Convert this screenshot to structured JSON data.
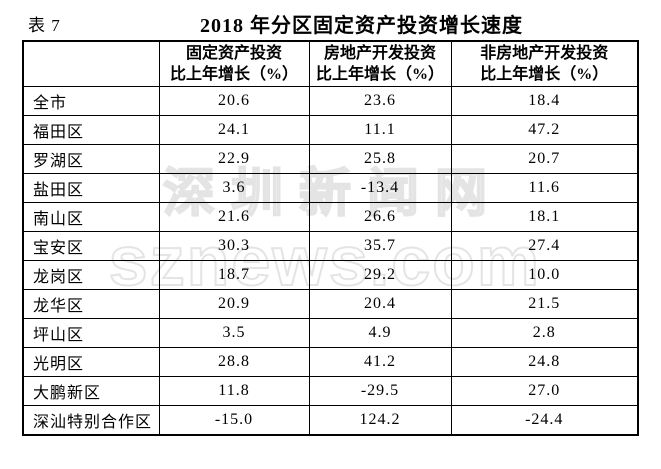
{
  "page": {
    "table_label": "表 7",
    "title": "2018 年分区固定资产投资增长速度"
  },
  "watermark": {
    "line1": "深圳新闻网",
    "line2": "sznews.com",
    "color": "#e4e4e4"
  },
  "table": {
    "corner_label": "",
    "headers": [
      {
        "line1": "固定资产投资",
        "line2": "比上年增长（%）"
      },
      {
        "line1": "房地产开发投资",
        "line2": "比上年增长（%）"
      },
      {
        "line1": "非房地产开发投资",
        "line2": "比上年增长（%）"
      }
    ],
    "rows": [
      {
        "district": "全市",
        "values": [
          "20.6",
          "23.6",
          "18.4"
        ]
      },
      {
        "district": "福田区",
        "values": [
          "24.1",
          "11.1",
          "47.2"
        ]
      },
      {
        "district": "罗湖区",
        "values": [
          "22.9",
          "25.8",
          "20.7"
        ]
      },
      {
        "district": "盐田区",
        "values": [
          "3.6",
          "-13.4",
          "11.6"
        ]
      },
      {
        "district": "南山区",
        "values": [
          "21.6",
          "26.6",
          "18.1"
        ]
      },
      {
        "district": "宝安区",
        "values": [
          "30.3",
          "35.7",
          "27.4"
        ]
      },
      {
        "district": "龙岗区",
        "values": [
          "18.7",
          "29.2",
          "10.0"
        ]
      },
      {
        "district": "龙华区",
        "values": [
          "20.9",
          "20.4",
          "21.5"
        ]
      },
      {
        "district": "坪山区",
        "values": [
          "3.5",
          "4.9",
          "2.8"
        ]
      },
      {
        "district": "光明区",
        "values": [
          "28.8",
          "41.2",
          "24.8"
        ]
      },
      {
        "district": "大鹏新区",
        "values": [
          "11.8",
          "-29.5",
          "27.0"
        ]
      },
      {
        "district": "深汕特别合作区",
        "values": [
          "-15.0",
          "124.2",
          "-24.4"
        ]
      }
    ]
  },
  "chart_data": {
    "type": "table",
    "title": "2018 年分区固定资产投资增长速度",
    "table_label": "表 7",
    "categories": [
      "全市",
      "福田区",
      "罗湖区",
      "盐田区",
      "南山区",
      "宝安区",
      "龙岗区",
      "龙华区",
      "坪山区",
      "光明区",
      "大鹏新区",
      "深汕特别合作区"
    ],
    "series": [
      {
        "name": "固定资产投资比上年增长（%）",
        "values": [
          20.6,
          24.1,
          22.9,
          3.6,
          21.6,
          30.3,
          18.7,
          20.9,
          3.5,
          28.8,
          11.8,
          -15.0
        ]
      },
      {
        "name": "房地产开发投资比上年增长（%）",
        "values": [
          23.6,
          11.1,
          25.8,
          -13.4,
          26.6,
          35.7,
          29.2,
          20.4,
          4.9,
          41.2,
          -29.5,
          124.2
        ]
      },
      {
        "name": "非房地产开发投资比上年增长（%）",
        "values": [
          18.4,
          47.2,
          20.7,
          11.6,
          18.1,
          27.4,
          10.0,
          21.5,
          2.8,
          24.8,
          27.0,
          -24.4
        ]
      }
    ],
    "unit": "%",
    "grid": true,
    "legend_position": "none"
  }
}
